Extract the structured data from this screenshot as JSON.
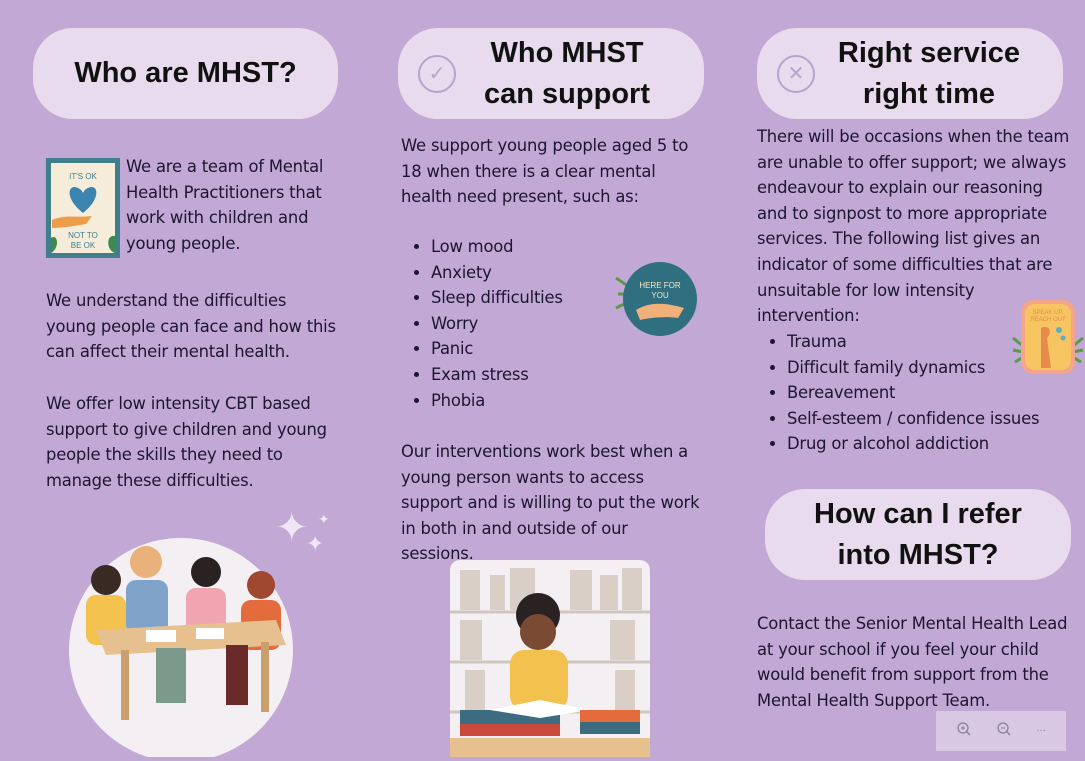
{
  "col1": {
    "heading": "Who are MHST?",
    "sticker_text": [
      "IT'S OK",
      "NOT TO",
      "BE OK"
    ],
    "intro": "We are a team of Mental Health Practitioners that work with children and young people.",
    "para2": "We understand the difficulties young people can face and how this can affect their mental health.",
    "para3": "We offer low intensity CBT based support to give children and young people the skills they need to manage these difficulties."
  },
  "col2": {
    "heading_line1": "Who MHST",
    "heading_line2": "can support",
    "heading_icon": "check-circle-icon",
    "intro": "We support young people aged 5 to 18 when there is a clear mental health need present, such as:",
    "list": [
      "Low mood",
      "Anxiety",
      "Sleep difficulties",
      "Worry",
      "Panic",
      "Exam stress",
      "Phobia"
    ],
    "sticker_text": [
      "HERE FOR",
      "YOU"
    ],
    "para2": "Our interventions work best when a young person wants to access support and is willing to put the work in both in and outside of our sessions."
  },
  "col3": {
    "heading_line1": "Right service",
    "heading_line2": "right time",
    "heading_icon": "x-circle-icon",
    "intro": "There will be occasions when the team are unable to offer support; we always endeavour to explain our reasoning and to signpost to more appropriate services. The following list gives an indicator of some difficulties that are unsuitable for low intensity intervention:",
    "list": [
      "Trauma",
      "Difficult family dynamics",
      "Bereavement",
      "Self-esteem / confidence issues",
      "Drug or alcohol addiction"
    ],
    "sticker_text": [
      "SPEAK UP,",
      "REACH OUT"
    ],
    "heading2_line1": "How can I refer",
    "heading2_line2": "into MHST?",
    "para2": "Contact the Senior Mental Health Lead at your school if you feel your child would benefit from support from the Mental Health Support Team."
  },
  "viewer": {
    "zoom_in_icon": "zoom-in-icon",
    "zoom_out_icon": "zoom-out-icon",
    "more_icon": "more-icon"
  },
  "colors": {
    "background": "#c1a8d5",
    "pill": "#e9dbee"
  }
}
